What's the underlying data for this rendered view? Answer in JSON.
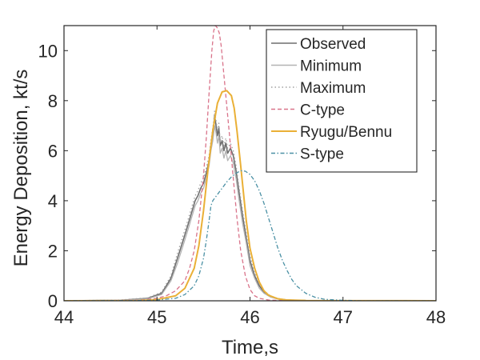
{
  "chart_data": {
    "type": "line",
    "title": "",
    "xlabel": "Time,s",
    "ylabel": "Energy Deposition, kt/s",
    "xlim": [
      44,
      48
    ],
    "ylim": [
      0,
      11
    ],
    "xticks": [
      44,
      45,
      46,
      47,
      48
    ],
    "yticks": [
      0,
      2,
      4,
      6,
      8,
      10
    ],
    "xtick_labels": [
      "44",
      "45",
      "46",
      "47",
      "48"
    ],
    "ytick_labels": [
      "0",
      "2",
      "4",
      "6",
      "8",
      "10"
    ],
    "grid": false,
    "legend_position": "top-right",
    "series": [
      {
        "name": "Observed",
        "color": "#6e6e6e",
        "style": "solid",
        "x": [
          44.0,
          44.6,
          44.9,
          45.05,
          45.15,
          45.22,
          45.28,
          45.33,
          45.37,
          45.41,
          45.44,
          45.47,
          45.5,
          45.53,
          45.56,
          45.58,
          45.6,
          45.61,
          45.62,
          45.635,
          45.65,
          45.665,
          45.68,
          45.7,
          45.72,
          45.74,
          45.76,
          45.79,
          45.82,
          45.85,
          45.88,
          45.92,
          45.96,
          46.0,
          46.05,
          46.1,
          46.15,
          46.22,
          46.3,
          46.4,
          46.6,
          48.0
        ],
        "y": [
          0.0,
          0.02,
          0.1,
          0.3,
          0.9,
          1.7,
          2.4,
          3.0,
          3.5,
          4.0,
          4.2,
          4.5,
          4.7,
          5.1,
          5.6,
          6.2,
          6.7,
          7.0,
          7.4,
          7.0,
          6.6,
          6.9,
          6.2,
          6.4,
          6.0,
          6.3,
          5.9,
          6.1,
          5.8,
          5.2,
          4.4,
          3.4,
          2.5,
          1.6,
          1.0,
          0.6,
          0.35,
          0.18,
          0.08,
          0.03,
          0.01,
          0.0
        ]
      },
      {
        "name": "Minimum",
        "color": "#b3b3b3",
        "style": "solid",
        "x": [
          44.0,
          44.6,
          44.9,
          45.05,
          45.15,
          45.22,
          45.28,
          45.33,
          45.37,
          45.41,
          45.44,
          45.47,
          45.5,
          45.53,
          45.56,
          45.58,
          45.6,
          45.61,
          45.62,
          45.635,
          45.65,
          45.665,
          45.68,
          45.7,
          45.72,
          45.74,
          45.76,
          45.79,
          45.82,
          45.85,
          45.88,
          45.92,
          45.96,
          46.0,
          46.05,
          46.1,
          46.15,
          46.22,
          46.3,
          46.4,
          46.6,
          48.0
        ],
        "y": [
          0.0,
          0.02,
          0.08,
          0.25,
          0.8,
          1.5,
          2.2,
          2.8,
          3.3,
          3.8,
          4.0,
          4.3,
          4.5,
          4.9,
          5.4,
          6.0,
          6.4,
          6.7,
          7.0,
          6.7,
          6.3,
          6.6,
          5.9,
          6.1,
          5.7,
          6.0,
          5.6,
          5.8,
          5.5,
          4.9,
          4.1,
          3.1,
          2.3,
          1.4,
          0.9,
          0.5,
          0.3,
          0.15,
          0.07,
          0.02,
          0.01,
          0.0
        ]
      },
      {
        "name": "Maximum",
        "color": "#a0a0a0",
        "style": "dotted",
        "x": [
          44.0,
          44.6,
          44.9,
          45.05,
          45.15,
          45.22,
          45.28,
          45.33,
          45.37,
          45.41,
          45.44,
          45.47,
          45.5,
          45.53,
          45.56,
          45.58,
          45.6,
          45.61,
          45.62,
          45.635,
          45.65,
          45.665,
          45.68,
          45.7,
          45.72,
          45.74,
          45.76,
          45.79,
          45.82,
          45.85,
          45.88,
          45.92,
          45.96,
          46.0,
          46.05,
          46.1,
          46.15,
          46.22,
          46.3,
          46.4,
          46.6,
          48.0
        ],
        "y": [
          0.0,
          0.03,
          0.12,
          0.35,
          1.0,
          1.9,
          2.6,
          3.2,
          3.7,
          4.2,
          4.4,
          4.7,
          4.9,
          5.3,
          5.8,
          6.4,
          6.9,
          7.2,
          7.6,
          7.2,
          6.8,
          7.1,
          6.4,
          6.6,
          6.2,
          6.5,
          6.1,
          6.3,
          6.0,
          5.4,
          4.6,
          3.6,
          2.7,
          1.8,
          1.1,
          0.7,
          0.4,
          0.2,
          0.09,
          0.04,
          0.01,
          0.0
        ]
      },
      {
        "name": "C-type",
        "color": "#d9738a",
        "style": "dashed",
        "x": [
          44.0,
          44.8,
          45.0,
          45.1,
          45.2,
          45.3,
          45.35,
          45.4,
          45.45,
          45.5,
          45.53,
          45.56,
          45.59,
          45.61,
          45.63,
          45.65,
          45.67,
          45.69,
          45.71,
          45.74,
          45.78,
          45.82,
          45.86,
          45.9,
          45.95,
          46.0,
          46.05,
          46.1,
          46.2,
          46.4,
          48.0
        ],
        "y": [
          0.0,
          0.02,
          0.1,
          0.2,
          0.4,
          0.8,
          1.3,
          2.0,
          3.2,
          5.0,
          6.5,
          8.3,
          10.0,
          10.8,
          11.0,
          10.9,
          10.7,
          10.2,
          9.4,
          8.2,
          6.6,
          4.9,
          3.3,
          2.0,
          1.0,
          0.45,
          0.2,
          0.1,
          0.03,
          0.0,
          0.0
        ]
      },
      {
        "name": "Ryugu/Bennu",
        "color": "#eab036",
        "style": "solid",
        "x": [
          44.0,
          44.8,
          45.0,
          45.2,
          45.3,
          45.4,
          45.45,
          45.5,
          45.55,
          45.6,
          45.65,
          45.7,
          45.75,
          45.8,
          45.83,
          45.86,
          45.9,
          45.93,
          45.96,
          46.0,
          46.05,
          46.1,
          46.15,
          46.2,
          46.3,
          46.4,
          46.6,
          48.0
        ],
        "y": [
          0.0,
          0.01,
          0.05,
          0.2,
          0.5,
          1.3,
          2.2,
          3.6,
          5.3,
          6.8,
          7.9,
          8.35,
          8.4,
          8.2,
          7.7,
          6.8,
          5.4,
          4.3,
          3.2,
          2.1,
          1.3,
          0.75,
          0.4,
          0.22,
          0.08,
          0.03,
          0.01,
          0.0
        ]
      },
      {
        "name": "S-type",
        "color": "#4a90a4",
        "style": "dashdot",
        "x": [
          44.0,
          44.8,
          45.0,
          45.2,
          45.3,
          45.4,
          45.45,
          45.5,
          45.53,
          45.56,
          45.58,
          45.6,
          45.65,
          45.7,
          45.75,
          45.8,
          45.85,
          45.9,
          45.95,
          46.0,
          46.05,
          46.1,
          46.15,
          46.2,
          46.25,
          46.3,
          46.35,
          46.4,
          46.45,
          46.5,
          46.6,
          46.7,
          46.8,
          47.0,
          47.2,
          48.0
        ],
        "y": [
          0.0,
          0.01,
          0.03,
          0.1,
          0.25,
          0.6,
          1.0,
          1.7,
          2.4,
          3.2,
          3.8,
          4.0,
          4.25,
          4.5,
          4.75,
          4.95,
          5.1,
          5.2,
          5.18,
          5.05,
          4.8,
          4.4,
          3.9,
          3.3,
          2.7,
          2.1,
          1.6,
          1.2,
          0.85,
          0.6,
          0.3,
          0.14,
          0.06,
          0.02,
          0.0,
          0.0
        ]
      }
    ]
  }
}
